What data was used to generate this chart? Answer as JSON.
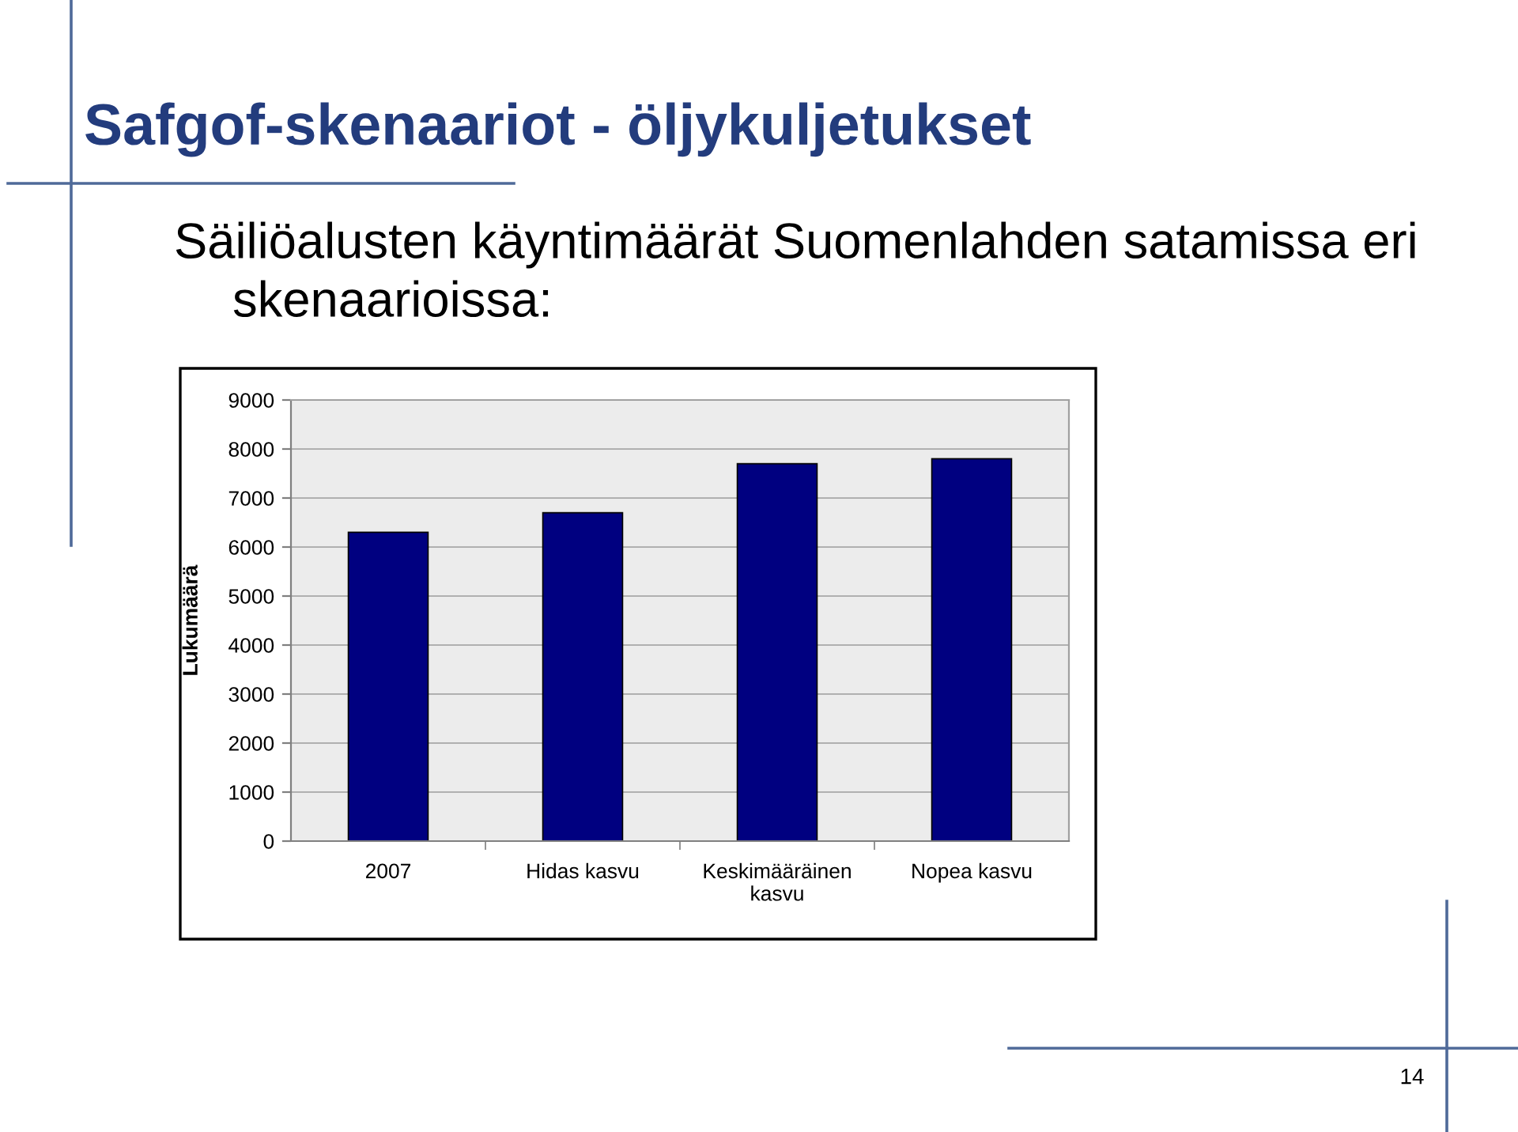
{
  "chart_data": {
    "type": "bar",
    "title": "Safgof-skenaariot - öljykuljetukset",
    "subtitle": "Säiliöalusten käyntimäärät Suomenlahden satamissa eri\nskenaarioissa:",
    "ylabel": "Lukumäärä",
    "categories": [
      "2007",
      "Hidas kasvu",
      "Keskimääräinen\nkasvu",
      "Nopea kasvu"
    ],
    "values": [
      6300,
      6700,
      7700,
      7800
    ],
    "color": "#000080",
    "ylim": [
      0,
      9000
    ],
    "yticks": [
      0,
      1000,
      2000,
      3000,
      4000,
      5000,
      6000,
      7000,
      8000,
      9000
    ],
    "grid": "y",
    "annotations": [
      "14"
    ]
  }
}
